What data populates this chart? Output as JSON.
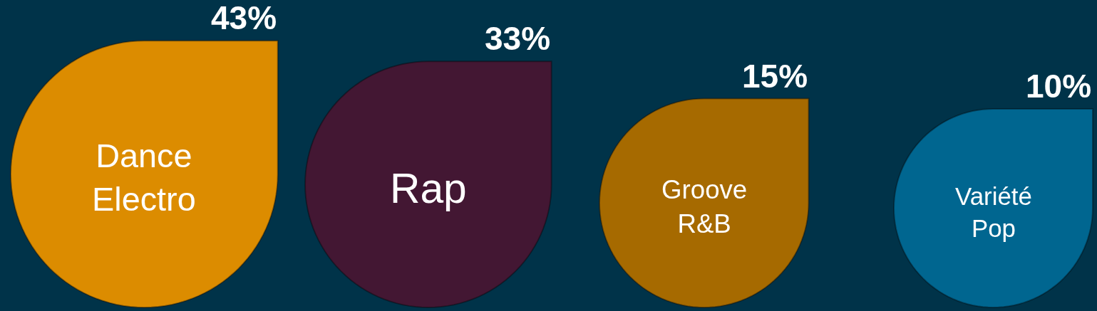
{
  "chart_data": {
    "type": "other",
    "categories": [
      "Dance\nElectro",
      "Rap",
      "Groove\nR&B",
      "Variété\nPop"
    ],
    "values": [
      43,
      33,
      15,
      10
    ],
    "value_labels": [
      "43%",
      "33%",
      "15%",
      "10%"
    ],
    "colors": [
      "#dc8c00",
      "#431733",
      "#a66a00",
      "#006690"
    ]
  }
}
